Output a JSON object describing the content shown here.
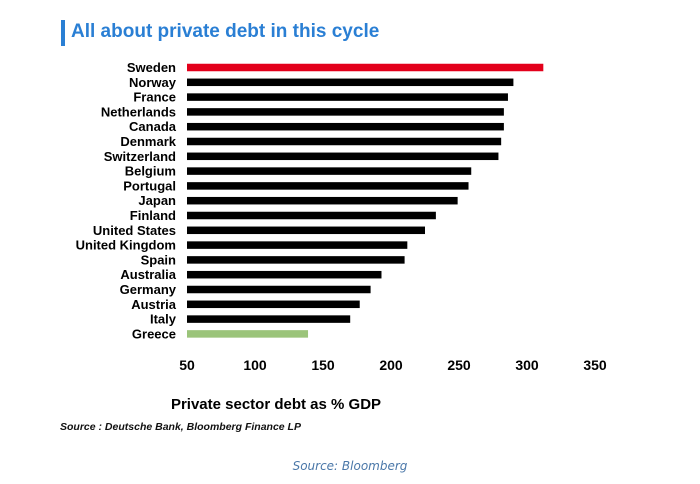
{
  "chart_data": {
    "type": "bar",
    "orientation": "horizontal",
    "title": "All about private debt in this cycle",
    "xlabel": "Private sector debt as % GDP",
    "ylabel": "",
    "xlim": [
      50,
      350
    ],
    "xticks": [
      50,
      100,
      150,
      200,
      250,
      300,
      350
    ],
    "categories": [
      "Sweden",
      "Norway",
      "France",
      "Netherlands",
      "Canada",
      "Denmark",
      "Switzerland",
      "Belgium",
      "Portugal",
      "Japan",
      "Finland",
      "United States",
      "United Kingdom",
      "Spain",
      "Australia",
      "Germany",
      "Austria",
      "Italy",
      "Greece"
    ],
    "values": [
      312,
      290,
      286,
      283,
      283,
      281,
      279,
      259,
      257,
      249,
      233,
      225,
      212,
      210,
      193,
      185,
      177,
      170,
      139
    ],
    "bar_colors": {
      "default": "#000000",
      "Sweden": "#e3001b",
      "Greece": "#9bc47a"
    },
    "grid": false,
    "source_note": "Source : Deutsche Bank, Bloomberg Finance LP"
  },
  "caption": "Source: Bloomberg"
}
